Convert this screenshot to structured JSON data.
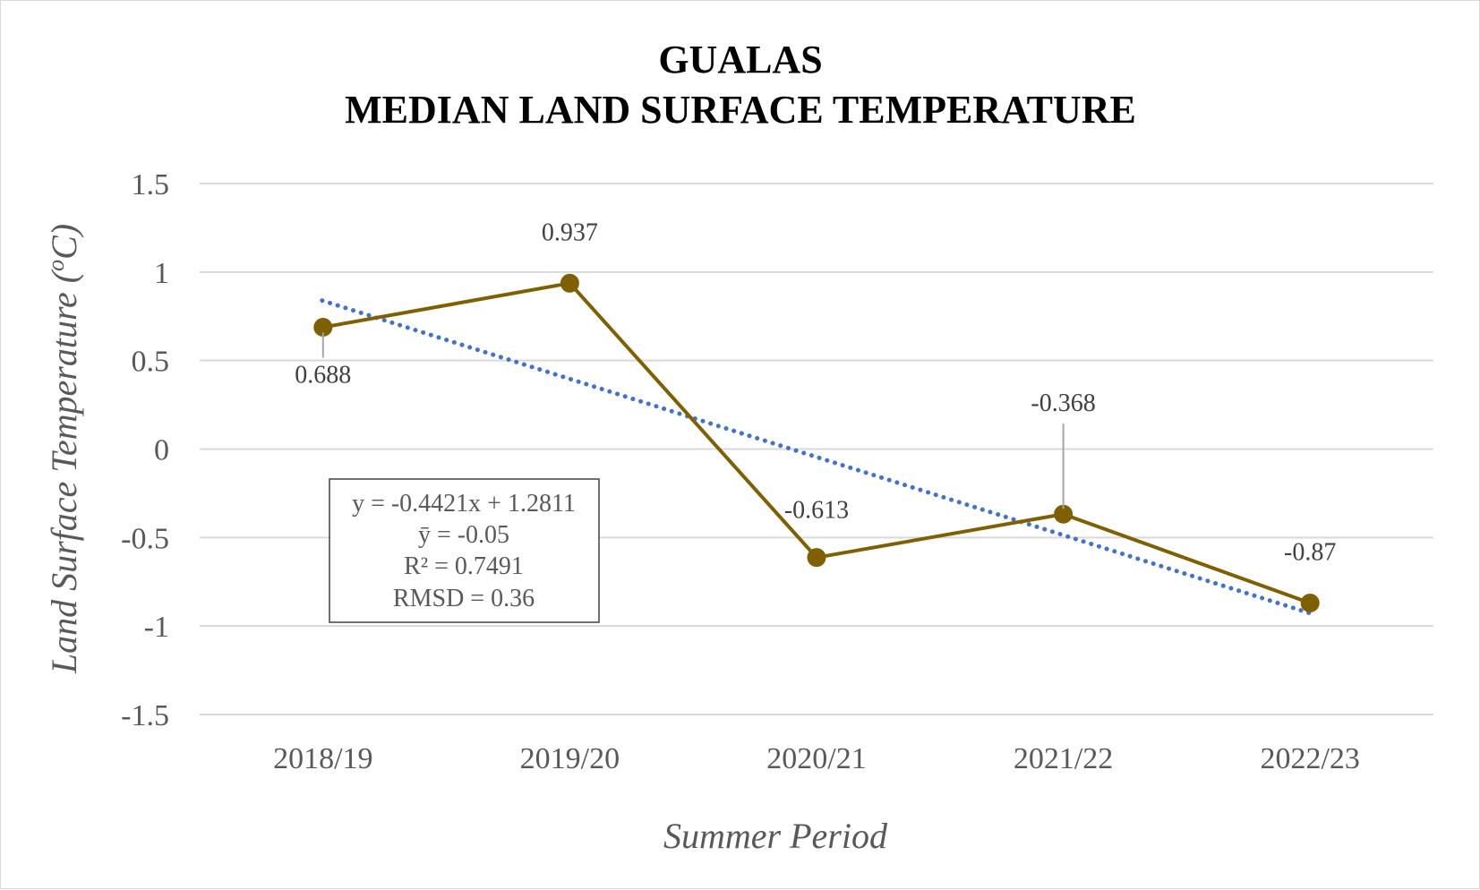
{
  "chart_data": {
    "type": "line",
    "title_lines": [
      "GUALAS",
      "MEDIAN LAND SURFACE TEMPERATURE"
    ],
    "xlabel": "Summer Period",
    "ylabel_main": "Land Surface Temperature (",
    "ylabel_sup": "o",
    "ylabel_end": "C)",
    "categories": [
      "2018/19",
      "2019/20",
      "2020/21",
      "2021/22",
      "2022/23"
    ],
    "series": [
      {
        "values": [
          0.688,
          0.937,
          -0.613,
          -0.368,
          -0.87
        ],
        "data_labels": [
          "0.688",
          "0.937",
          "-0.613",
          "-0.368",
          "-0.87"
        ],
        "color": "#7f6000"
      }
    ],
    "trendline": {
      "type": "linear",
      "slope": -0.4421,
      "intercept": 1.2811,
      "color": "#4472c4",
      "style": "dotted"
    },
    "stats_box": [
      "y = -0.4421x + 1.2811",
      "ȳ = -0.05",
      "R² = 0.7491",
      "RMSD = 0.36"
    ],
    "yticks": [
      "1.5",
      "1",
      "0.5",
      "0",
      "-0.5",
      "-1",
      "-1.5"
    ],
    "ytick_values": [
      1.5,
      1,
      0.5,
      0,
      -0.5,
      -1,
      -1.5
    ],
    "ylim": [
      -1.5,
      1.5
    ],
    "grid": true,
    "gridline_color": "#d9d9d9",
    "legend": "none"
  }
}
